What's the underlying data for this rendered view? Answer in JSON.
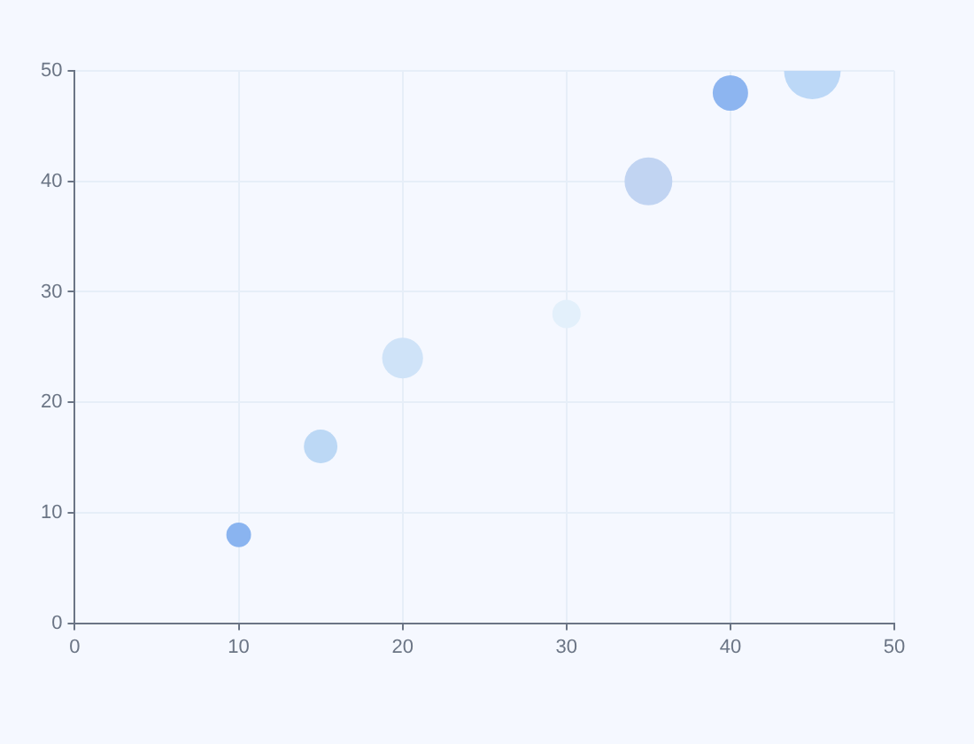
{
  "chart_data": {
    "type": "bubble",
    "x": [
      10,
      15,
      20,
      30,
      35,
      40,
      45
    ],
    "values": [
      8,
      16,
      24,
      28,
      40,
      48,
      50
    ],
    "sizes": [
      0.19,
      0.35,
      0.52,
      0.25,
      0.71,
      0.39,
      1
    ],
    "colors": [
      "#8ab4f0",
      "#bcd8f5",
      "#cfe3f8",
      "#e3f0fb",
      "#c1d4f2",
      "#8db5f0",
      "#bcd8f7"
    ],
    "xlim": [
      0,
      50
    ],
    "xticks": [
      0,
      10,
      20,
      30,
      40,
      50
    ],
    "ylim": [
      0,
      50
    ],
    "yticks": [
      0,
      10,
      20,
      30,
      40,
      50
    ],
    "grid": true
  }
}
